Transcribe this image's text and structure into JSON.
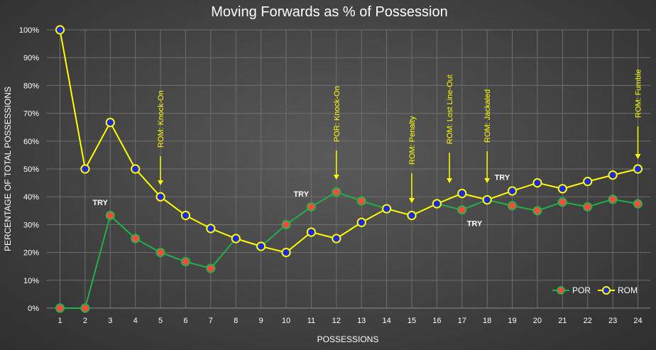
{
  "chart_data": {
    "type": "line",
    "title": "Moving Forwards as % of Possession",
    "xlabel": "POSSESSIONS",
    "ylabel": "PERCENTAGE OF TOTAL POSSESSIONS",
    "x": [
      1,
      2,
      3,
      4,
      5,
      6,
      7,
      8,
      9,
      10,
      11,
      12,
      13,
      14,
      15,
      16,
      17,
      18,
      19,
      20,
      21,
      22,
      23,
      24
    ],
    "ylim": [
      0,
      100
    ],
    "yticks": [
      "0%",
      "10%",
      "20%",
      "30%",
      "40%",
      "50%",
      "60%",
      "70%",
      "80%",
      "90%",
      "100%"
    ],
    "grid": true,
    "legend_position": "bottom-right",
    "series": [
      {
        "name": "POR",
        "line_color": "#22b04b",
        "marker_color": "#ff4b3e",
        "values": [
          0,
          0,
          33.3,
          25,
          20,
          16.7,
          14.3,
          25,
          22.2,
          30,
          36.4,
          41.7,
          38.5,
          35.7,
          33.3,
          37.5,
          35.3,
          38.9,
          36.8,
          35,
          38.1,
          36.4,
          39.1,
          37.5
        ]
      },
      {
        "name": "ROM",
        "line_color": "#ffff00",
        "marker_color": "#1c2bd6",
        "values": [
          100,
          50,
          66.7,
          50,
          40,
          33.3,
          28.6,
          25,
          22.2,
          20,
          27.3,
          25,
          30.8,
          35.7,
          33.3,
          37.5,
          41.2,
          38.9,
          42.1,
          45,
          42.9,
          45.5,
          47.8,
          50
        ]
      }
    ],
    "annotations": [
      {
        "text": "ROM: Knock-On",
        "x": 5
      },
      {
        "text": "POR: Knock-On",
        "x": 12
      },
      {
        "text": "ROM: Penalty",
        "x": 15
      },
      {
        "text": "ROM: Lost Line-Out",
        "x": 16.5
      },
      {
        "text": "ROM: Jackaled",
        "x": 18
      },
      {
        "text": "ROM: Fumble",
        "x": 24
      }
    ],
    "try_labels": [
      {
        "text": "TRY",
        "x": 2.6,
        "y": 37
      },
      {
        "text": "TRY",
        "x": 10.6,
        "y": 40
      },
      {
        "text": "TRY",
        "x": 17.5,
        "y": 29.5
      },
      {
        "text": "TRY",
        "x": 18.6,
        "y": 46
      }
    ]
  }
}
